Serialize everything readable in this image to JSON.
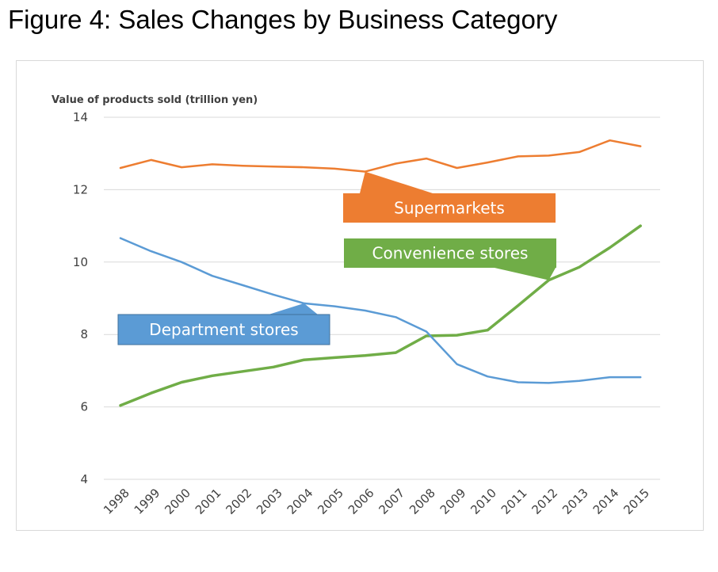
{
  "figure": {
    "title": "Figure 4: Sales Changes by Business Category"
  },
  "chart_data": {
    "type": "line",
    "title": "Figure 4: Sales Changes by Business Category",
    "ylabel": "Value of products sold (trillion yen)",
    "xlabel": "",
    "ylim": [
      4,
      14
    ],
    "yticks": [
      4,
      6,
      8,
      10,
      12,
      14
    ],
    "grid": true,
    "legend": "callouts",
    "x": [
      "1998",
      "1999",
      "2000",
      "2001",
      "2002",
      "2003",
      "2004",
      "2005",
      "2006",
      "2007",
      "2008",
      "2009",
      "2010",
      "2011",
      "2012",
      "2013",
      "2014",
      "2015"
    ],
    "series": [
      {
        "name": "Supermarkets",
        "color": "#ed7d31",
        "values": [
          12.6,
          12.82,
          12.62,
          12.7,
          12.66,
          12.64,
          12.62,
          12.58,
          12.5,
          12.72,
          12.86,
          12.6,
          12.75,
          12.92,
          12.94,
          13.04,
          13.36,
          13.2
        ]
      },
      {
        "name": "Convenience stores",
        "color": "#70ad47",
        "values": [
          6.04,
          6.38,
          6.68,
          6.86,
          6.98,
          7.1,
          7.3,
          7.36,
          7.42,
          7.5,
          7.96,
          7.98,
          8.12,
          8.8,
          9.5,
          9.86,
          10.4,
          11.0
        ]
      },
      {
        "name": "Department stores",
        "color": "#5b9bd5",
        "values": [
          10.66,
          10.3,
          10.0,
          9.62,
          9.36,
          9.1,
          8.86,
          8.78,
          8.66,
          8.48,
          8.08,
          7.18,
          6.84,
          6.68,
          6.66,
          6.72,
          6.82,
          6.82
        ]
      }
    ],
    "annotations": [
      {
        "text": "Supermarkets",
        "series": "Supermarkets",
        "points_to": "2006"
      },
      {
        "text": "Convenience stores",
        "series": "Convenience stores",
        "points_to": "2012"
      },
      {
        "text": "Department stores",
        "series": "Department stores",
        "points_to": "2004"
      }
    ]
  }
}
